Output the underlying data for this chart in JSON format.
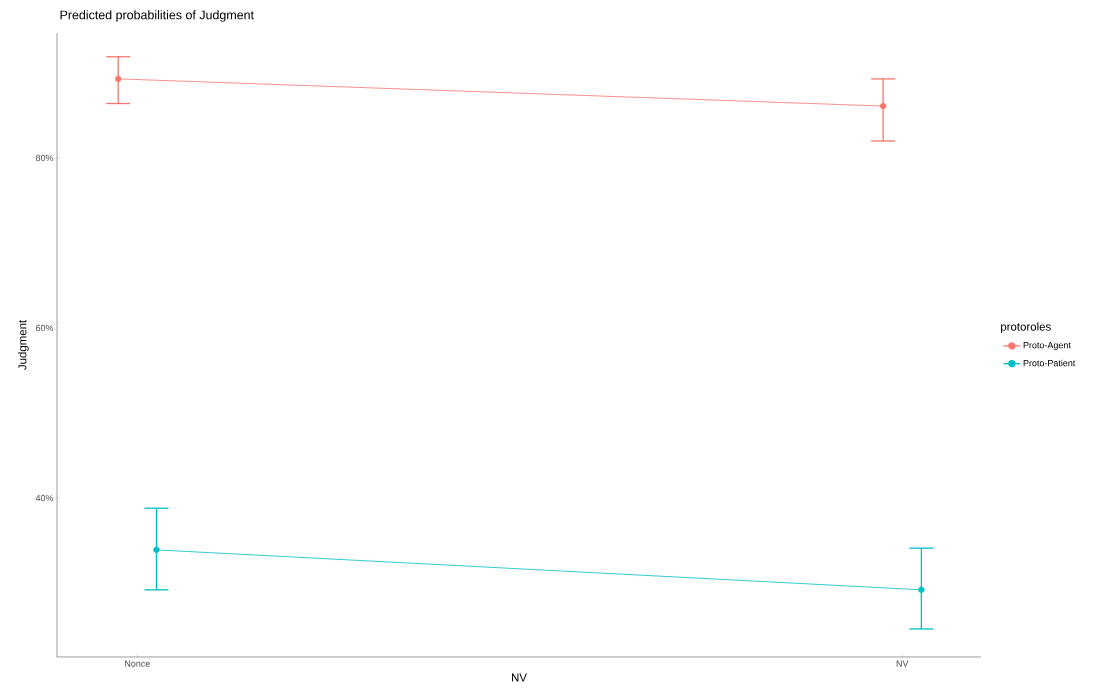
{
  "chart_data": {
    "type": "line",
    "title": "Predicted probabilities of Judgment",
    "xlabel": "NV",
    "ylabel": "Judgment",
    "legend_title": "protoroles",
    "categories": [
      "Nonce",
      "NV"
    ],
    "series": [
      {
        "name": "Proto-Agent",
        "color": "#f8766d",
        "values": [
          89.3,
          86.1
        ],
        "errors": [
          [
            86.4,
            91.9
          ],
          [
            82.0,
            89.3
          ]
        ]
      },
      {
        "name": "Proto-Patient",
        "color": "#00bfc4",
        "values": [
          33.9,
          29.2
        ],
        "errors": [
          [
            29.2,
            38.8
          ],
          [
            24.6,
            34.1
          ]
        ]
      }
    ],
    "ylim": [
      21.3,
      94.7
    ],
    "yticks": [
      {
        "value": 40,
        "label": "40%"
      },
      {
        "value": 60,
        "label": "60%"
      },
      {
        "value": 80,
        "label": "80%"
      }
    ],
    "grid": false,
    "legend": "right",
    "marker": "circle",
    "line_style": "solid"
  }
}
